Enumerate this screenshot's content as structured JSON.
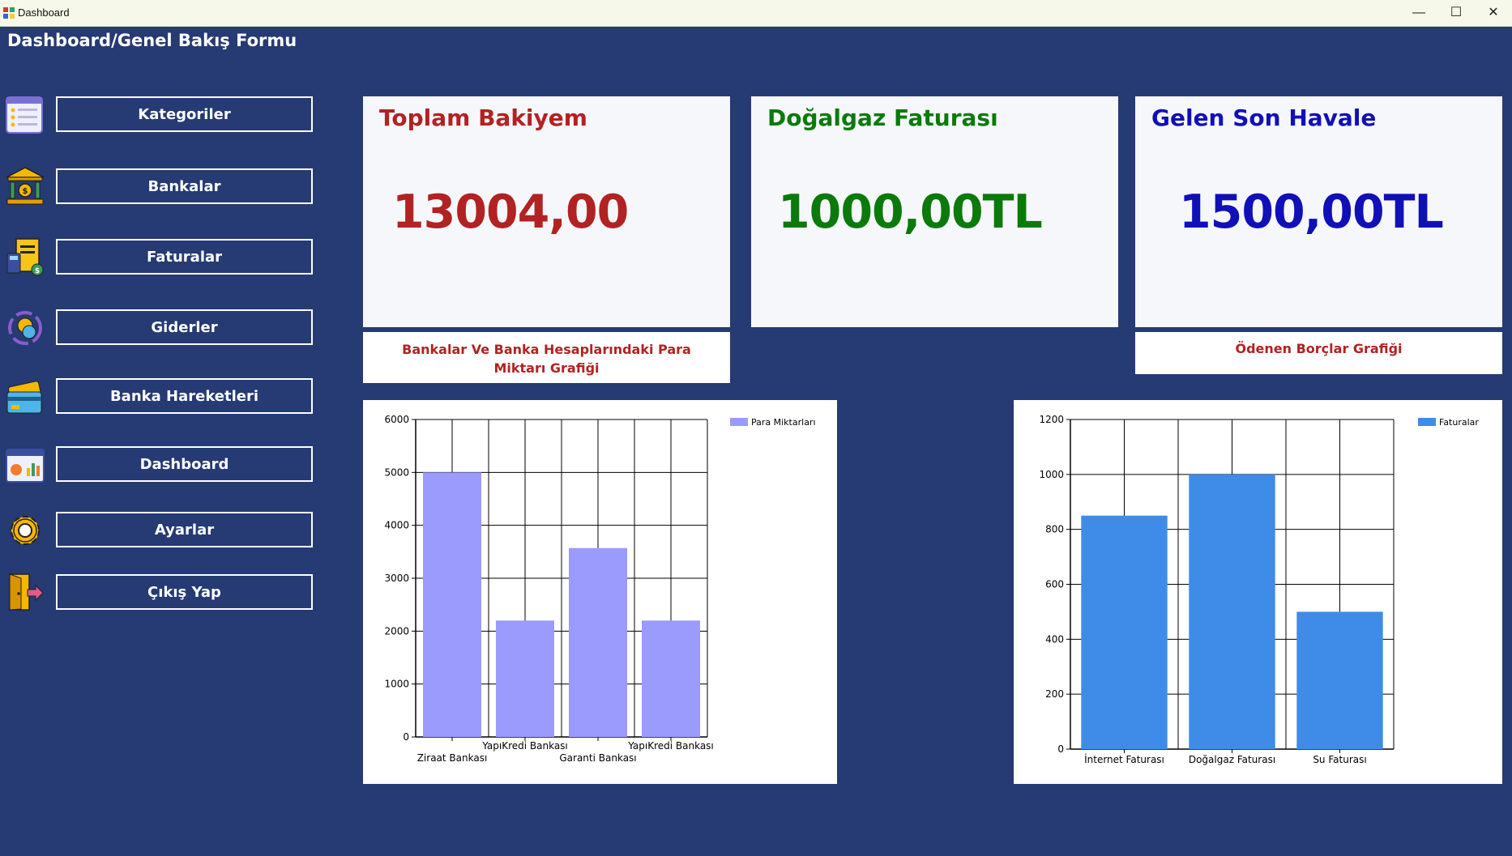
{
  "window": {
    "title": "Dashboard",
    "minimize": "—",
    "maximize": "☐",
    "close": "✕"
  },
  "form_title": "Dashboard/Genel Bakış Formu",
  "nav": {
    "kategoriler": "Kategoriler",
    "bankalar": "Bankalar",
    "faturalar": "Faturalar",
    "giderler": "Giderler",
    "banka_hareketleri": "Banka Hareketleri",
    "dashboard": "Dashboard",
    "ayarlar": "Ayarlar",
    "cikis": "Çıkış Yap"
  },
  "cards": {
    "balance": {
      "title": "Toplam Bakiyem",
      "value": "13004,00",
      "color": "#b22222"
    },
    "gas_bill": {
      "title": "Doğalgaz Faturası",
      "value": "1000,00TL",
      "color": "#0a7a0a"
    },
    "transfer": {
      "title": "Gelen Son Havale",
      "value": "1500,00TL",
      "color": "#1010b8"
    }
  },
  "captions": {
    "bank_chart": "Bankalar Ve Banka Hesaplarındaki Para Miktarı Grafiği",
    "debt_chart": "Ödenen Borçlar Grafiği"
  },
  "chart_data": [
    {
      "type": "bar",
      "categories": [
        "Ziraat Bankası",
        "YapıKredi Bankası",
        "Garanti Bankası",
        "YapıKredi Bankası"
      ],
      "series": [
        {
          "name": "Para Miktarları",
          "values": [
            5000,
            2200,
            3570,
            2200
          ],
          "color": "#9b9bfd"
        }
      ],
      "ylim": [
        0,
        6000
      ],
      "yticks": [
        0,
        1000,
        2000,
        3000,
        4000,
        5000,
        6000
      ],
      "grid": true,
      "legend": "top-right"
    },
    {
      "type": "bar",
      "categories": [
        "İnternet Faturası",
        "Doğalgaz Faturası",
        "Su Faturası"
      ],
      "series": [
        {
          "name": "Faturalar",
          "values": [
            850,
            1000,
            500
          ],
          "color": "#3f8ce8"
        }
      ],
      "ylim": [
        0,
        1200
      ],
      "yticks": [
        0,
        200,
        400,
        600,
        800,
        1000,
        1200
      ],
      "grid": true,
      "legend": "top-right"
    }
  ]
}
